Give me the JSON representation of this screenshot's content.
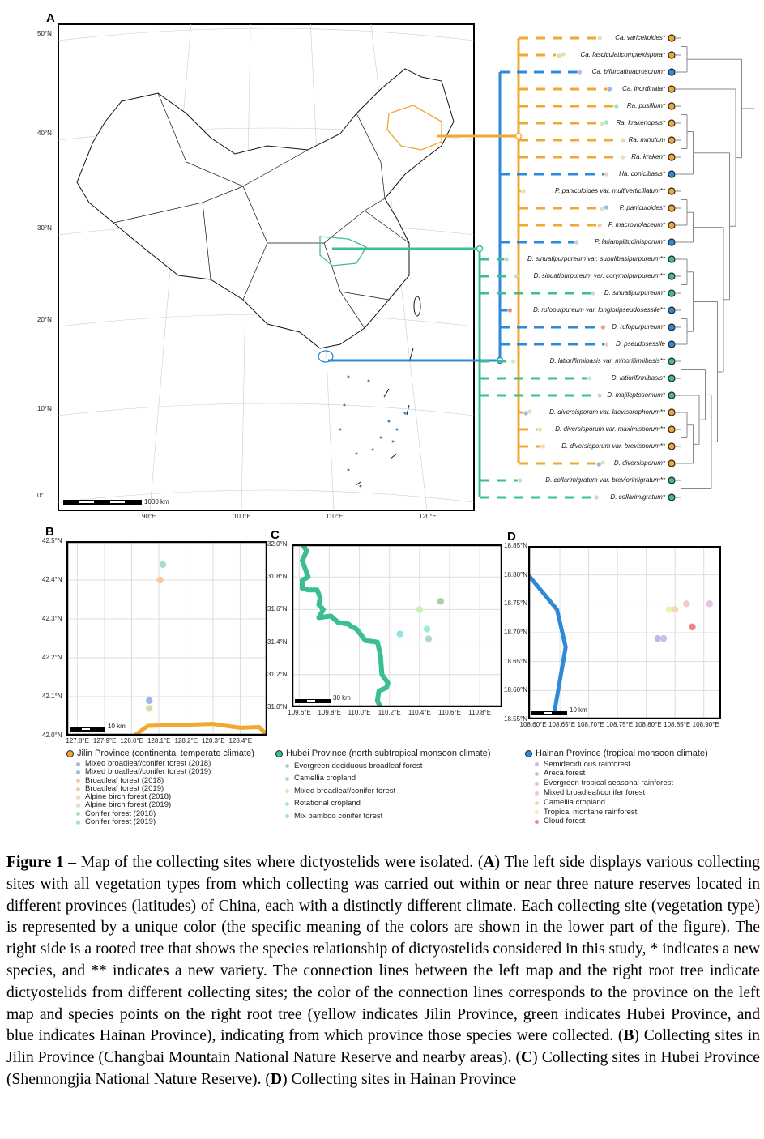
{
  "colors": {
    "jilin": "#F0A830",
    "hubei": "#3CBF8F",
    "hainan": "#2D8AD8"
  },
  "panel_a": {
    "label": "A",
    "lat_ticks": [
      "50°N",
      "40°N",
      "30°N",
      "20°N",
      "10°N",
      "0°"
    ],
    "lon_ticks": [
      "90°E",
      "100°E",
      "110°E",
      "120°E"
    ],
    "scale_label": "1000 km"
  },
  "tree": {
    "leaves": [
      {
        "name": "Ca. varicelloides*",
        "province": "jilin",
        "sites": [
          "#E2E0B8"
        ]
      },
      {
        "name": "Ca. fasciculaticomplexispora*",
        "province": "jilin",
        "sites": [
          "#E2E0B8",
          "#DCDCB0"
        ]
      },
      {
        "name": "Ca. bifurcatimacrosorum*",
        "province": "hainan",
        "sites": [
          "#C8B8E8"
        ]
      },
      {
        "name": "Ca. inordinata*",
        "province": "jilin",
        "sites": [
          "#9DB8E0"
        ]
      },
      {
        "name": "Ra. pusillum*",
        "province": "jilin",
        "sites": [
          "#A8DCCF"
        ]
      },
      {
        "name": "Ra. krakenopsis*",
        "province": "jilin",
        "sites": [
          "#A8DCCF",
          "#E2E0B8"
        ]
      },
      {
        "name": "Ra. minutum",
        "province": "jilin",
        "sites": [
          "#E2E0B8"
        ]
      },
      {
        "name": "Ra. kraken*",
        "province": "jilin",
        "sites": [
          "#E2E0B8"
        ]
      },
      {
        "name": "Ha. conicibasis*",
        "province": "hainan",
        "sites": [
          "#F2C8CC"
        ]
      },
      {
        "name": "P. paniculoides var. multiverticillatum**",
        "province": "jilin",
        "sites": [
          "#E2E0B8"
        ]
      },
      {
        "name": "P. paniculoides*",
        "province": "jilin",
        "sites": [
          "#9DB8E0",
          "#E2E0B8"
        ]
      },
      {
        "name": "P. macroviolaceum*",
        "province": "jilin",
        "sites": [
          "#F2C8A8"
        ]
      },
      {
        "name": "P. latiamplitudinisporum*",
        "province": "hainan",
        "sites": [
          "#E0C0E0"
        ]
      },
      {
        "name": "D. sinuatipurpureum var. subulibasipurpureum**",
        "province": "hubei",
        "sites": [
          "#C8DCC0"
        ]
      },
      {
        "name": "D. sinuatipurpureum var. corymbipurpureum**",
        "province": "hubei",
        "sites": [
          "#C8DCC0"
        ]
      },
      {
        "name": "D. sinuatipurpureum*",
        "province": "hubei",
        "sites": [
          "#C8DCC0"
        ]
      },
      {
        "name": "D. rufopurpureum var. longioripseudosessile**",
        "province": "hainan",
        "sites": [
          "#EE8C8C"
        ]
      },
      {
        "name": "D. rufopurpureum*",
        "province": "hainan",
        "sites": [
          "#EE9C9C"
        ]
      },
      {
        "name": "D. pseudosessile",
        "province": "hainan",
        "sites": [
          "#F2C8CC"
        ]
      },
      {
        "name": "D. latiorifirmibasis var. minorifirmibasis**",
        "province": "hubei",
        "sites": [
          "#C8EEC0"
        ]
      },
      {
        "name": "D. latiorifirmibasis*",
        "province": "hubei",
        "sites": [
          "#C8EEC0"
        ]
      },
      {
        "name": "D. majileptosomum*",
        "province": "hubei",
        "sites": [
          "#C0DCD0"
        ]
      },
      {
        "name": "D. diversisporum var. laevisorophorum**",
        "province": "jilin",
        "sites": [
          "#E2E0B8",
          "#9DB8E0"
        ]
      },
      {
        "name": "D. diversisporum var. maximisporum**",
        "province": "jilin",
        "sites": [
          "#E2E0B8"
        ]
      },
      {
        "name": "D. diversisporum var. brevisporum**",
        "province": "jilin",
        "sites": [
          "#E2E0B8"
        ]
      },
      {
        "name": "D. diversisporum*",
        "province": "jilin",
        "sites": [
          "#E2E0B8",
          "#9DB8E0"
        ]
      },
      {
        "name": "D. collarimigratum var. breviorimigratum**",
        "province": "hubei",
        "sites": [
          "#C8DCC0"
        ]
      },
      {
        "name": "D. collarimigratum*",
        "province": "hubei",
        "sites": [
          "#C8DCC0"
        ]
      }
    ],
    "topology": [
      [
        [
          [
            0,
            1
          ],
          2
        ],
        [
          3,
          [
            [
              [
                [
                  4,
                  5
                ],
                [
                  6,
                  7
                ]
              ],
              8
            ],
            [
              [
                [
                  [
                    9,
                    10
                  ],
                  11
                ],
                12
              ],
              [
                [
                  [
                    13,
                    [
                      14,
                      15
                    ]
                  ],
                  [
                    [
                      16,
                      17
                    ],
                    18
                  ]
                ],
                [
                  [
                    [
                      19,
                      20
                    ],
                    [
                      21,
                      [
                        [
                          22,
                          [
                            23,
                            24
                          ]
                        ],
                        25
                      ]
                    ]
                  ],
                  [
                    26,
                    27
                  ]
                ]
              ]
            ]
          ]
        ]
      ]
    ]
  },
  "panels": [
    {
      "label": "B",
      "lat": [
        42.0,
        42.5
      ],
      "lon": [
        127.76,
        128.5
      ],
      "lat_ticks": [
        {
          "v": 42.0,
          "t": "42.0°N"
        },
        {
          "v": 42.1,
          "t": "42.1°N"
        },
        {
          "v": 42.2,
          "t": "42.2°N"
        },
        {
          "v": 42.3,
          "t": "42.3°N"
        },
        {
          "v": 42.4,
          "t": "42.4°N"
        },
        {
          "v": 42.5,
          "t": "42.5°N"
        }
      ],
      "lon_ticks": [
        {
          "v": 127.8,
          "t": "127.8°E"
        },
        {
          "v": 127.9,
          "t": "127.9°E"
        },
        {
          "v": 128.0,
          "t": "128.0°E"
        },
        {
          "v": 128.1,
          "t": "128.1°E"
        },
        {
          "v": 128.2,
          "t": "128.2°E"
        },
        {
          "v": 128.3,
          "t": "128.3°E"
        },
        {
          "v": 128.4,
          "t": "128.4°E"
        }
      ],
      "scale_label": "10 km",
      "province": "jilin",
      "border": [
        [
          128.0,
          41.995
        ],
        [
          128.06,
          42.025
        ],
        [
          128.3,
          42.03
        ],
        [
          128.4,
          42.02
        ],
        [
          128.47,
          42.022
        ],
        [
          128.5,
          42.0
        ]
      ],
      "points": [
        {
          "lon": 128.115,
          "lat": 42.44,
          "c": "#A8DCCF"
        },
        {
          "lon": 128.105,
          "lat": 42.4,
          "c": "#F2C8A0"
        },
        {
          "lon": 128.065,
          "lat": 42.09,
          "c": "#9DB8E0"
        },
        {
          "lon": 128.065,
          "lat": 42.07,
          "c": "#DCDCA8"
        }
      ]
    },
    {
      "label": "C",
      "lat": [
        31.0,
        32.0
      ],
      "lon": [
        109.55,
        110.95
      ],
      "lat_ticks": [
        {
          "v": 31.0,
          "t": "31.0°N"
        },
        {
          "v": 31.2,
          "t": "31.2°N"
        },
        {
          "v": 31.4,
          "t": "31.4°N"
        },
        {
          "v": 31.6,
          "t": "31.6°N"
        },
        {
          "v": 31.8,
          "t": "31.8°N"
        },
        {
          "v": 32.0,
          "t": "32.0°N"
        }
      ],
      "lon_ticks": [
        {
          "v": 109.6,
          "t": "109.6°E"
        },
        {
          "v": 109.8,
          "t": "109.8°E"
        },
        {
          "v": 110.0,
          "t": "110.0°E"
        },
        {
          "v": 110.2,
          "t": "110.2°E"
        },
        {
          "v": 110.4,
          "t": "110.4°E"
        },
        {
          "v": 110.6,
          "t": "110.6°E"
        },
        {
          "v": 110.8,
          "t": "110.8°E"
        }
      ],
      "scale_label": "30 km",
      "province": "hubei",
      "border": [
        [
          109.62,
          32.0
        ],
        [
          109.65,
          31.96
        ],
        [
          109.62,
          31.9
        ],
        [
          109.66,
          31.8
        ],
        [
          109.62,
          31.78
        ],
        [
          109.62,
          31.73
        ],
        [
          109.66,
          31.72
        ],
        [
          109.72,
          31.72
        ],
        [
          109.74,
          31.67
        ],
        [
          109.73,
          31.63
        ],
        [
          109.76,
          31.6
        ],
        [
          109.73,
          31.55
        ],
        [
          109.81,
          31.56
        ],
        [
          109.86,
          31.52
        ],
        [
          109.93,
          31.51
        ],
        [
          109.94,
          31.5
        ],
        [
          109.98,
          31.48
        ],
        [
          110.04,
          31.41
        ],
        [
          110.12,
          31.4
        ],
        [
          110.14,
          31.32
        ],
        [
          110.15,
          31.2
        ],
        [
          110.19,
          31.15
        ],
        [
          110.18,
          31.12
        ],
        [
          110.13,
          31.1
        ],
        [
          110.12,
          31.04
        ],
        [
          110.14,
          31.0
        ]
      ],
      "points": [
        {
          "lon": 110.27,
          "lat": 31.45,
          "c": "#8EE4E8"
        },
        {
          "lon": 110.4,
          "lat": 31.6,
          "c": "#C8F0B0"
        },
        {
          "lon": 110.54,
          "lat": 31.65,
          "c": "#A8D0A0"
        },
        {
          "lon": 110.45,
          "lat": 31.48,
          "c": "#A0ECD8"
        },
        {
          "lon": 110.46,
          "lat": 31.42,
          "c": "#B0D8C8"
        }
      ]
    },
    {
      "label": "D",
      "lat": [
        18.55,
        18.85
      ],
      "lon": [
        108.595,
        108.93
      ],
      "lat_ticks": [
        {
          "v": 18.55,
          "t": "18.55°N"
        },
        {
          "v": 18.6,
          "t": "18.60°N"
        },
        {
          "v": 18.65,
          "t": "18.65°N"
        },
        {
          "v": 18.7,
          "t": "18.70°N"
        },
        {
          "v": 18.75,
          "t": "18.75°N"
        },
        {
          "v": 18.8,
          "t": "18.80°N"
        },
        {
          "v": 18.85,
          "t": "18.85°N"
        }
      ],
      "lon_ticks": [
        {
          "v": 108.6,
          "t": "108.60°E"
        },
        {
          "v": 108.65,
          "t": "108.65°E"
        },
        {
          "v": 108.7,
          "t": "108.70°E"
        },
        {
          "v": 108.75,
          "t": "108.75°E"
        },
        {
          "v": 108.8,
          "t": "108.80°E"
        },
        {
          "v": 108.85,
          "t": "108.85°E"
        },
        {
          "v": 108.9,
          "t": "108.90°E"
        }
      ],
      "scale_label": "10 km",
      "province": "hainan",
      "border": [
        [
          108.595,
          18.8
        ],
        [
          108.645,
          18.74
        ],
        [
          108.66,
          18.675
        ],
        [
          108.64,
          18.56
        ]
      ],
      "points": [
        {
          "lon": 108.82,
          "lat": 18.69,
          "c": "#C8B8E8"
        },
        {
          "lon": 108.83,
          "lat": 18.69,
          "c": "#C8C0E8"
        },
        {
          "lon": 108.84,
          "lat": 18.74,
          "c": "#F4ECB0"
        },
        {
          "lon": 108.85,
          "lat": 18.74,
          "c": "#F2D8B8"
        },
        {
          "lon": 108.87,
          "lat": 18.75,
          "c": "#F6C8CC"
        },
        {
          "lon": 108.91,
          "lat": 18.75,
          "c": "#E8C0E0"
        },
        {
          "lon": 108.88,
          "lat": 18.71,
          "c": "#EE8888"
        }
      ]
    }
  ],
  "legend": [
    {
      "province": "jilin",
      "title": "Jilin Province (continental temperate climate)",
      "items": [
        {
          "t": "Mixed broadleaf/conifer forest (2018)",
          "c": "#9DB8E0"
        },
        {
          "t": "Mixed broadleaf/conifer forest (2019)",
          "c": "#9DB8E0"
        },
        {
          "t": "Broadleaf forest (2018)",
          "c": "#F2C8A0"
        },
        {
          "t": "Broadleaf forest (2019)",
          "c": "#F2C8A0"
        },
        {
          "t": "Alpine birch forest (2018)",
          "c": "#E2E0B8"
        },
        {
          "t": "Alpine birch forest (2019)",
          "c": "#E2E0B8"
        },
        {
          "t": "Conifer forest (2018)",
          "c": "#A8DCCF"
        },
        {
          "t": "Conifer forest (2019)",
          "c": "#A8DCCF"
        }
      ]
    },
    {
      "province": "hubei",
      "title": "Hubei Province (north subtropical monsoon climate)",
      "items": [
        {
          "t": "Evergreen deciduous broadleaf forest",
          "c": "#C0D0C0"
        },
        {
          "t": "Camellia cropland",
          "c": "#A8DCCF"
        },
        {
          "t": "Mixed broadleaf/conifer forest",
          "c": "#C8F0B0"
        },
        {
          "t": "Rotational cropland",
          "c": "#A0ECD8"
        },
        {
          "t": "Mix bamboo conifer forest",
          "c": "#8EE4E8"
        }
      ]
    },
    {
      "province": "hainan",
      "title": "Hainan Province (tropical monsoon climate)",
      "items": [
        {
          "t": "Semideciduous rainforest",
          "c": "#C8B8E8"
        },
        {
          "t": "Areca forest",
          "c": "#C8C0E8"
        },
        {
          "t": "Evergreen tropical seasonal rainforest",
          "c": "#E8C0E0"
        },
        {
          "t": "Mixed broadleaf/conifer forest",
          "c": "#F6C8CC"
        },
        {
          "t": "Camellia cropland",
          "c": "#F2D8B8"
        },
        {
          "t": "Tropical montane rainforest",
          "c": "#F4ECB0"
        },
        {
          "t": "Cloud forest",
          "c": "#EE8888"
        }
      ]
    }
  ],
  "caption": [
    {
      "t": "Figure 1",
      "b": true
    },
    {
      "t": " – Map of the collecting sites where dictyostelids were isolated. (",
      "b": false
    },
    {
      "t": "A",
      "b": true
    },
    {
      "t": ") The left side displays various collecting sites with all vegetation types from which collecting was carried out within or near three nature reserves located in different provinces (latitudes) of China, each with a distinctly different climate. Each collecting site (vegetation type) is represented by a unique color (the specific meaning of the colors are shown in the lower part of the figure). The right side is a rooted tree that shows the species relationship of dictyostelids considered in this study, * indicates a new species, and ** indicates a new variety. The connection lines between the left map and the right root tree indicate dictyostelids from different collecting sites; the color of the connection lines corresponds to the province on the left map and species points on the right root tree (yellow indicates Jilin Province, green indicates Hubei Province, and blue indicates Hainan Province), indicating from which province those species were collected. (",
      "b": false
    },
    {
      "t": "B",
      "b": true
    },
    {
      "t": ") Collecting sites in Jilin Province (Changbai Mountain National Nature Reserve and nearby areas). (",
      "b": false
    },
    {
      "t": "C",
      "b": true
    },
    {
      "t": ") Collecting sites in Hubei Province (Shennongjia National Nature Reserve). (",
      "b": false
    },
    {
      "t": "D",
      "b": true
    },
    {
      "t": ") Collecting sites in Hainan Province",
      "b": false
    }
  ]
}
